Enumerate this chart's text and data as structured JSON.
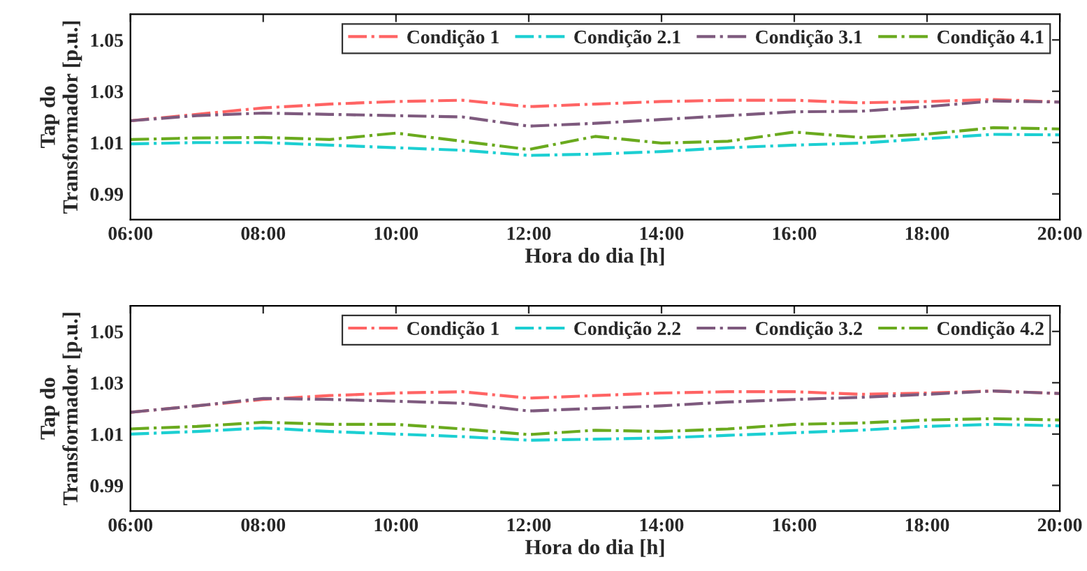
{
  "chart_data": [
    {
      "type": "line",
      "xlabel": "Hora do dia [h]",
      "ylabel": "Tap do\nTransformador [p.u.]",
      "x": [
        6,
        7,
        8,
        9,
        10,
        11,
        12,
        13,
        14,
        15,
        16,
        17,
        18,
        19,
        20
      ],
      "xlim": [
        6,
        20
      ],
      "xticks": [
        {
          "value": 6,
          "label": "06:00"
        },
        {
          "value": 8,
          "label": "08:00"
        },
        {
          "value": 10,
          "label": "10:00"
        },
        {
          "value": 12,
          "label": "12:00"
        },
        {
          "value": 14,
          "label": "14:00"
        },
        {
          "value": 16,
          "label": "16:00"
        },
        {
          "value": 18,
          "label": "18:00"
        },
        {
          "value": 20,
          "label": "20:00"
        }
      ],
      "ylim": [
        0.98,
        1.06
      ],
      "yticks": [
        {
          "value": 0.99,
          "label": "0.99"
        },
        {
          "value": 1.01,
          "label": "1.01"
        },
        {
          "value": 1.03,
          "label": "1.03"
        },
        {
          "value": 1.05,
          "label": "1.05"
        }
      ],
      "grid": false,
      "legend": "top right",
      "line_style": "dashdot",
      "marker": "none",
      "series": [
        {
          "name": "Condição 1",
          "color": "#ff6464",
          "values": [
            1.0185,
            1.021,
            1.0235,
            1.025,
            1.026,
            1.0265,
            1.024,
            1.025,
            1.026,
            1.0265,
            1.0265,
            1.0255,
            1.026,
            1.0268,
            1.0258
          ]
        },
        {
          "name": "Condição 2.1",
          "color": "#1ccfd2",
          "values": [
            1.0095,
            1.01,
            1.01,
            1.009,
            1.008,
            1.007,
            1.005,
            1.0055,
            1.0065,
            1.008,
            1.009,
            1.0098,
            1.0115,
            1.0132,
            1.013
          ]
        },
        {
          "name": "Condição 3.1",
          "color": "#7e5a7e",
          "values": [
            1.0185,
            1.0205,
            1.0215,
            1.021,
            1.0205,
            1.02,
            1.0164,
            1.0175,
            1.019,
            1.0205,
            1.022,
            1.0222,
            1.024,
            1.0262,
            1.0258
          ]
        },
        {
          "name": "Condição 4.1",
          "color": "#6aaa1e",
          "values": [
            1.0112,
            1.0118,
            1.012,
            1.0112,
            1.0137,
            1.0105,
            1.0073,
            1.0124,
            1.0098,
            1.0105,
            1.0141,
            1.012,
            1.0133,
            1.0158,
            1.0153
          ]
        }
      ]
    },
    {
      "type": "line",
      "xlabel": "Hora do dia [h]",
      "ylabel": "Tap do\nTransformador [p.u.]",
      "x": [
        6,
        7,
        8,
        9,
        10,
        11,
        12,
        13,
        14,
        15,
        16,
        17,
        18,
        19,
        20
      ],
      "xlim": [
        6,
        20
      ],
      "xticks": [
        {
          "value": 6,
          "label": "06:00"
        },
        {
          "value": 8,
          "label": "08:00"
        },
        {
          "value": 10,
          "label": "10:00"
        },
        {
          "value": 12,
          "label": "12:00"
        },
        {
          "value": 14,
          "label": "14:00"
        },
        {
          "value": 16,
          "label": "16:00"
        },
        {
          "value": 18,
          "label": "18:00"
        },
        {
          "value": 20,
          "label": "20:00"
        }
      ],
      "ylim": [
        0.98,
        1.06
      ],
      "yticks": [
        {
          "value": 0.99,
          "label": "0.99"
        },
        {
          "value": 1.01,
          "label": "1.01"
        },
        {
          "value": 1.03,
          "label": "1.03"
        },
        {
          "value": 1.05,
          "label": "1.05"
        }
      ],
      "grid": false,
      "legend": "top right",
      "line_style": "dashdot",
      "marker": "none",
      "series": [
        {
          "name": "Condição 1",
          "color": "#ff6464",
          "values": [
            1.0185,
            1.021,
            1.0235,
            1.025,
            1.026,
            1.0265,
            1.024,
            1.025,
            1.026,
            1.0265,
            1.0265,
            1.0255,
            1.026,
            1.0268,
            1.0258
          ]
        },
        {
          "name": "Condição 2.2",
          "color": "#1ccfd2",
          "values": [
            1.01,
            1.011,
            1.0124,
            1.011,
            1.01,
            1.009,
            1.0076,
            1.008,
            1.0085,
            1.0095,
            1.0105,
            1.0115,
            1.013,
            1.0138,
            1.0132
          ]
        },
        {
          "name": "Condição 3.2",
          "color": "#7e5a7e",
          "values": [
            1.0185,
            1.021,
            1.0239,
            1.0235,
            1.0228,
            1.022,
            1.019,
            1.02,
            1.021,
            1.0225,
            1.0235,
            1.0243,
            1.0255,
            1.0268,
            1.0258
          ]
        },
        {
          "name": "Condição 4.2",
          "color": "#6aaa1e",
          "values": [
            1.012,
            1.013,
            1.0146,
            1.0138,
            1.0138,
            1.012,
            1.0098,
            1.0115,
            1.011,
            1.012,
            1.0138,
            1.0143,
            1.0155,
            1.016,
            1.0155
          ]
        }
      ]
    }
  ]
}
